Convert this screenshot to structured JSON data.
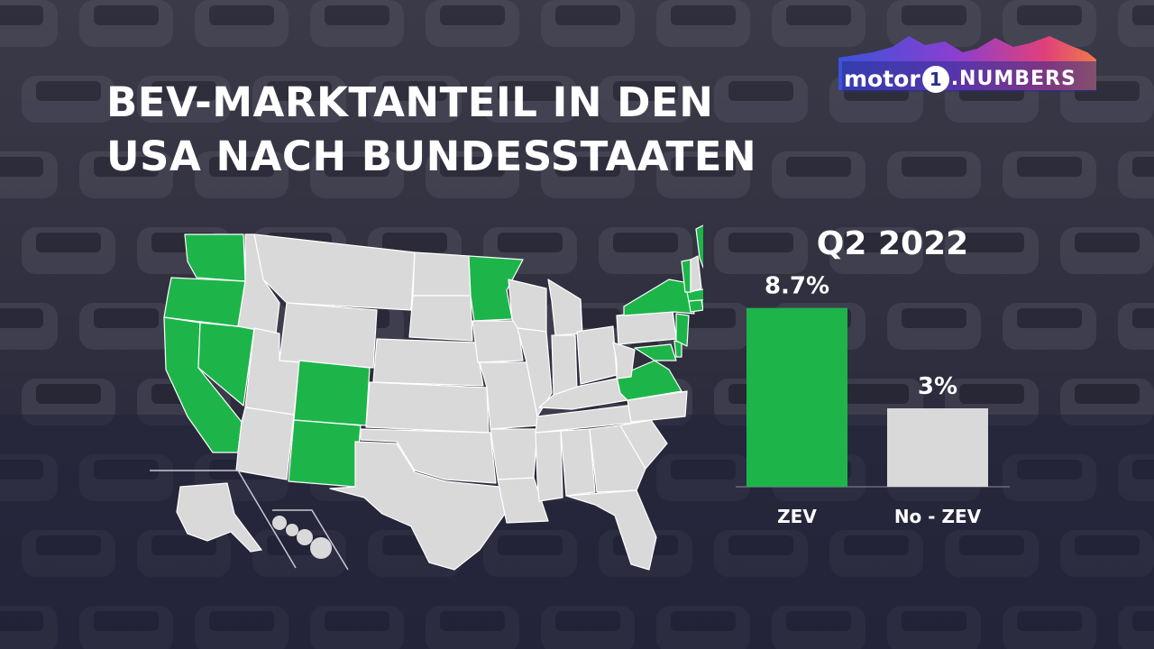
{
  "title_lines": [
    "BEV-MARKTANTEIL IN DEN",
    "USA NACH BUNDESSTAATEN"
  ],
  "brand": {
    "motor": "motor",
    "one": "1",
    "numbers": ".NUMBERS"
  },
  "period": "Q2 2022",
  "colors": {
    "zev": "#1db54a",
    "non_zev": "#d9d9d9",
    "background": "#2a2a3a",
    "text": "#ffffff",
    "map_state": "#d9d9d9"
  },
  "chart_data": {
    "type": "bar",
    "title": "Q2 2022",
    "categories": [
      "ZEV",
      "No - ZEV"
    ],
    "values": [
      8.7,
      3
    ],
    "value_labels": [
      "8.7%",
      "3%"
    ],
    "unit": "%",
    "ylim": [
      0,
      10
    ],
    "grid": false,
    "legend": "none"
  },
  "map": {
    "type": "choropleth-us-states",
    "zev_states": [
      "WA",
      "OR",
      "CA",
      "NV",
      "CO",
      "NM",
      "MN",
      "NY",
      "VT",
      "ME",
      "MA",
      "CT",
      "RI",
      "NJ",
      "MD",
      "DE",
      "VA"
    ]
  }
}
